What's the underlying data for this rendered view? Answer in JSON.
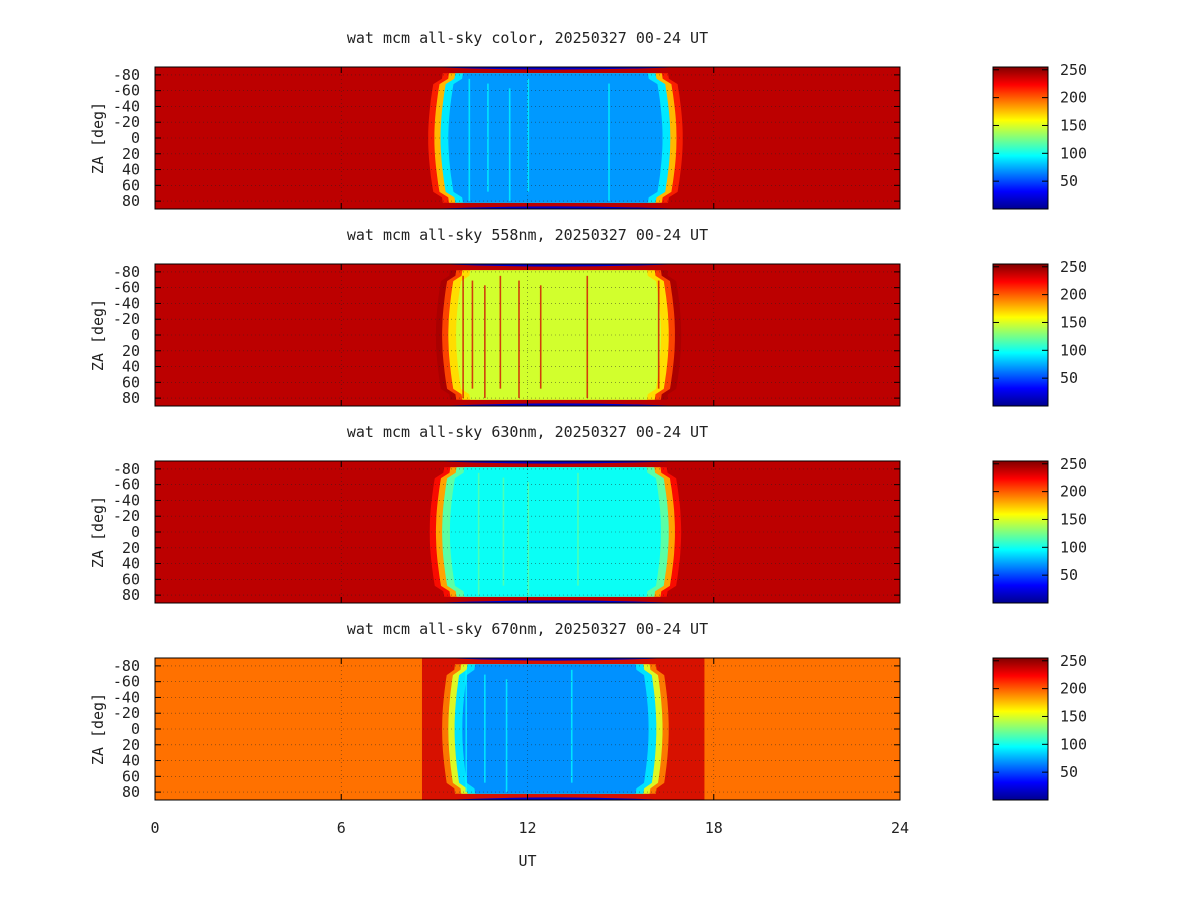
{
  "chart_data": [
    {
      "type": "heatmap",
      "title": "wat mcm all-sky color, 20250327 00-24 UT",
      "xlabel": "UT",
      "ylabel": "ZA [deg]",
      "xlim": [
        0,
        24
      ],
      "ylim": [
        -90,
        90
      ],
      "y_inverted": true,
      "x_ticks": [
        "0",
        "6",
        "12",
        "18",
        "24"
      ],
      "y_ticks": [
        "-80",
        "-60",
        "-40",
        "-20",
        "0",
        "20",
        "40",
        "60",
        "80"
      ],
      "y_tick_labels_shown": [
        "-80",
        "-60",
        "-40",
        "-20",
        "0",
        "20",
        "40",
        "60",
        "80"
      ],
      "colorbar": {
        "range": [
          0,
          255
        ],
        "ticks": [
          "50",
          "100",
          "150",
          "200",
          "250"
        ],
        "colormap": "jet"
      },
      "grid": true,
      "background_value": 240,
      "night": {
        "center_ut": 12.9,
        "half_width_ut": 3.75,
        "value": 70,
        "edge_value": 175,
        "streak_value": 95,
        "streaks_ut": [
          10.1,
          10.7,
          11.4,
          12.0,
          14.6
        ]
      }
    },
    {
      "type": "heatmap",
      "title": "wat mcm all-sky 558nm, 20250327 00-24 UT",
      "xlabel": "UT",
      "ylabel": "ZA [deg]",
      "xlim": [
        0,
        24
      ],
      "ylim": [
        -90,
        90
      ],
      "y_inverted": true,
      "x_ticks": [
        "0",
        "6",
        "12",
        "18",
        "24"
      ],
      "y_ticks": [
        "-80",
        "-60",
        "-40",
        "-20",
        "0",
        "20",
        "40",
        "60",
        "80"
      ],
      "y_tick_labels_shown": [
        "-80",
        "-60",
        "-40",
        "-20",
        "0",
        "20",
        "40",
        "60",
        "80"
      ],
      "colorbar": {
        "range": [
          0,
          255
        ],
        "ticks": [
          "50",
          "100",
          "150",
          "200",
          "250"
        ],
        "colormap": "jet"
      },
      "grid": true,
      "background_value": 240,
      "night": {
        "center_ut": 13.0,
        "half_width_ut": 3.6,
        "value": 148,
        "edge_value": 205,
        "streak_value": 235,
        "streaks_ut": [
          9.9,
          10.2,
          10.6,
          11.1,
          11.7,
          12.4,
          13.9,
          16.2
        ]
      }
    },
    {
      "type": "heatmap",
      "title": "wat mcm all-sky 630nm, 20250327 00-24 UT",
      "xlabel": "UT",
      "ylabel": "ZA [deg]",
      "xlim": [
        0,
        24
      ],
      "ylim": [
        -90,
        90
      ],
      "y_inverted": true,
      "x_ticks": [
        "0",
        "6",
        "12",
        "18",
        "24"
      ],
      "y_ticks": [
        "-80",
        "-60",
        "-40",
        "-20",
        "0",
        "20",
        "40",
        "60",
        "80"
      ],
      "y_tick_labels_shown": [
        "-80",
        "-60",
        "-40",
        "-20",
        "0",
        "20",
        "40",
        "60",
        "80"
      ],
      "colorbar": {
        "range": [
          0,
          255
        ],
        "ticks": [
          "50",
          "100",
          "150",
          "200",
          "250"
        ],
        "colormap": "jet"
      },
      "grid": true,
      "background_value": 240,
      "night": {
        "center_ut": 12.9,
        "half_width_ut": 3.7,
        "value": 98,
        "edge_value": 180,
        "streak_value": 120,
        "streaks_ut": [
          10.4,
          11.2,
          12.0,
          13.6
        ]
      }
    },
    {
      "type": "heatmap",
      "title": "wat mcm all-sky 670nm, 20250327 00-24 UT",
      "xlabel": "UT",
      "ylabel": "ZA [deg]",
      "xlim": [
        0,
        24
      ],
      "ylim": [
        -90,
        90
      ],
      "y_inverted": true,
      "x_ticks": [
        "0",
        "6",
        "12",
        "18",
        "24"
      ],
      "y_ticks": [
        "-80",
        "-60",
        "-40",
        "-20",
        "0",
        "20",
        "40",
        "60",
        "80"
      ],
      "y_tick_labels_shown": [
        "-80",
        "-60",
        "-40",
        "-20",
        "0",
        "20",
        "40",
        "60",
        "80"
      ],
      "colorbar": {
        "range": [
          0,
          255
        ],
        "ticks": [
          "50",
          "100",
          "150",
          "200",
          "250"
        ],
        "colormap": "jet"
      },
      "grid": true,
      "background_value": 195,
      "twilight": {
        "from_ut": 8.6,
        "to_ut": 17.7,
        "value": 235
      },
      "night": {
        "center_ut": 12.9,
        "half_width_ut": 3.3,
        "value": 68,
        "edge_value": 150,
        "streak_value": 95,
        "streaks_ut": [
          10.0,
          10.6,
          11.3,
          13.4
        ]
      }
    }
  ]
}
